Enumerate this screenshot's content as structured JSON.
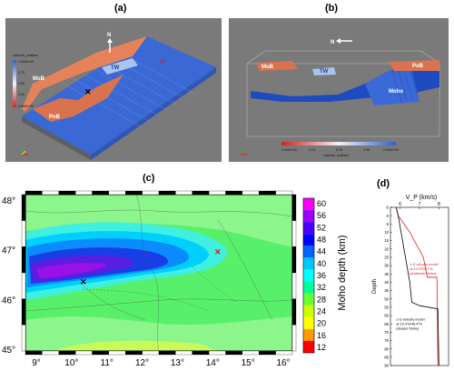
{
  "panel_a": {
    "label": "(a)",
    "north": "N",
    "bodies": {
      "mob": "MoB",
      "tw": "TW",
      "pob": "PoB"
    },
    "colorbar": {
      "title": "volume_scalars",
      "ticks": [
        "1.000e+00",
        "0.75",
        "0.50",
        "0.25",
        "0.000e+00"
      ]
    }
  },
  "panel_b": {
    "label": "(b)",
    "north": "N",
    "bodies": {
      "mob": "MoB",
      "tw": "TW",
      "pob": "PoB",
      "moho": "Moho"
    },
    "colorbar": {
      "title": "volume_scalars",
      "ticks": [
        "0.000e+00",
        "0.13",
        "0.25",
        "0.38",
        "1.000e+00"
      ]
    }
  },
  "panel_c": {
    "label": "(c)",
    "colorbar_label": "Moho depth (km)",
    "colorbar_ticks": [
      "60",
      "56",
      "52",
      "48",
      "44",
      "40",
      "36",
      "32",
      "28",
      "24",
      "20",
      "16",
      "12"
    ],
    "colorbar_colors": [
      "#ff00ff",
      "#9b00ff",
      "#4b00ff",
      "#0000ff",
      "#0066ff",
      "#00c8ff",
      "#00ffff",
      "#00ff96",
      "#66ff33",
      "#ccff00",
      "#ffff00",
      "#ff9900",
      "#ff0000"
    ],
    "y_ticks": [
      "48°",
      "47°",
      "46°",
      "45°"
    ],
    "x_ticks": [
      "9°",
      "10°",
      "11°",
      "12°",
      "13°",
      "14°",
      "15°",
      "16°"
    ]
  },
  "panel_d": {
    "label": "(d)",
    "chart_data": {
      "type": "line",
      "title": "V_P (km/s)",
      "ylabel": "Depth",
      "xlim": [
        5.5,
        8.5
      ],
      "ylim": [
        90,
        -5
      ],
      "x_ticks": [
        "6",
        "7",
        "8"
      ],
      "y_ticks": [
        "-5",
        "0",
        "5",
        "10",
        "15",
        "20",
        "25",
        "30",
        "35",
        "40",
        "45",
        "50",
        "55",
        "60",
        "65",
        "70",
        "75",
        "80",
        "85",
        "90"
      ],
      "series": [
        {
          "name": "1-D velocity model at 14.5°E/47°N (shallower Moho)",
          "color": "#e02020",
          "points": [
            [
              5.8,
              -5
            ],
            [
              5.9,
              0
            ],
            [
              6.5,
              10
            ],
            [
              7.2,
              25
            ],
            [
              7.4,
              37
            ],
            [
              7.9,
              37
            ],
            [
              7.95,
              90
            ]
          ]
        },
        {
          "name": "1-D velocity model at 10.4°E/46.4°N (deeper Moho)",
          "color": "#000000",
          "points": [
            [
              5.8,
              -5
            ],
            [
              5.9,
              0
            ],
            [
              6.2,
              20
            ],
            [
              6.5,
              40
            ],
            [
              6.6,
              52
            ],
            [
              7.0,
              54
            ],
            [
              7.95,
              56
            ],
            [
              8.0,
              90
            ]
          ]
        }
      ],
      "annotations": [
        {
          "lines": [
            "1-D velocity model",
            "at 14.5°E/47°N",
            "(shallower Moho)"
          ],
          "color": "#e02020"
        },
        {
          "lines": [
            "1-D velocity model",
            "at 10.4°E/46.4°N",
            "(deeper Moho)"
          ],
          "color": "#000000"
        }
      ]
    }
  }
}
